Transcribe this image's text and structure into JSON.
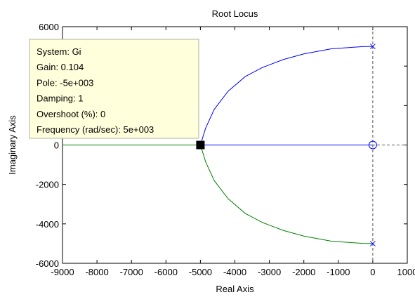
{
  "chart_data": {
    "type": "line",
    "title": "Root Locus",
    "xlabel": "Real Axis",
    "ylabel": "Imaginary Axis",
    "xlim": [
      -9000,
      1000
    ],
    "ylim": [
      -6000,
      6000
    ],
    "xticks": [
      -9000,
      -8000,
      -7000,
      -6000,
      -5000,
      -4000,
      -3000,
      -2000,
      -1000,
      0,
      1000
    ],
    "yticks": [
      -6000,
      -4000,
      -2000,
      0,
      2000,
      4000,
      6000
    ],
    "xtick_labels": [
      "-9000",
      "-8000",
      "-7000",
      "-6000",
      "-5000",
      "-4000",
      "-3000",
      "-2000",
      "-1000",
      "0",
      "1000"
    ],
    "ytick_labels": [
      "-6000",
      "-4000",
      "-2000",
      "0",
      "2000",
      "4000",
      "6000"
    ],
    "grid": false,
    "series": [
      {
        "color": "#0000ff",
        "points": [
          [
            0,
            5000
          ],
          [
            -300,
            4990
          ],
          [
            -1200,
            4880
          ],
          [
            -2000,
            4620
          ],
          [
            -2600,
            4330
          ],
          [
            -3200,
            3930
          ],
          [
            -3700,
            3470
          ],
          [
            -4200,
            2720
          ],
          [
            -4600,
            1800
          ],
          [
            -4850,
            850
          ],
          [
            -5000,
            0
          ],
          [
            0,
            0
          ]
        ]
      },
      {
        "color": "#008000",
        "points": [
          [
            0,
            -5000
          ],
          [
            -300,
            -4990
          ],
          [
            -1200,
            -4880
          ],
          [
            -2000,
            -4620
          ],
          [
            -2600,
            -4330
          ],
          [
            -3200,
            -3930
          ],
          [
            -3700,
            -3470
          ],
          [
            -4200,
            -2720
          ],
          [
            -4600,
            -1800
          ],
          [
            -4850,
            -850
          ],
          [
            -5000,
            0
          ],
          [
            -9000,
            0
          ]
        ]
      }
    ],
    "poles": [
      [
        0,
        5000
      ],
      [
        0,
        -5000
      ]
    ],
    "zeros": [
      [
        0,
        0
      ]
    ],
    "selected_point": [
      -5000,
      0
    ],
    "datatip": {
      "lines": [
        "System: Gi",
        "Gain: 0.104",
        "Pole: -5e+003",
        "Damping: 1",
        "Overshoot (%): 0",
        "Frequency (rad/sec): 5e+003"
      ]
    }
  }
}
